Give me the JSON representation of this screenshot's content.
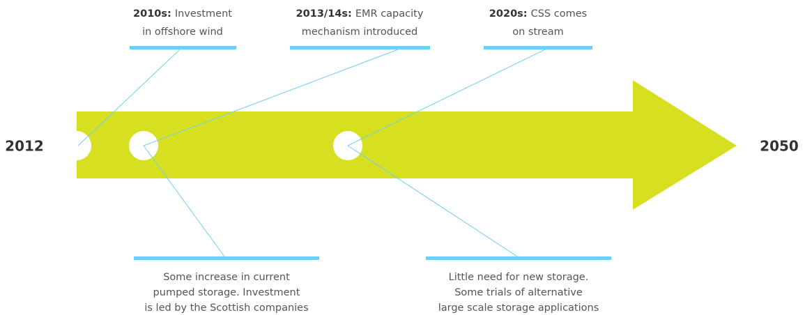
{
  "start": "2012",
  "end": "2050",
  "top_events": [
    {
      "label": "2010s:",
      "text_lines": [
        "Investment",
        "in offshore wind"
      ]
    },
    {
      "label": "2013/14s:",
      "text_lines": [
        "EMR capacity",
        "mechanism introduced"
      ]
    },
    {
      "label": "2020s:",
      "text_lines": [
        "CSS comes",
        "on stream"
      ]
    }
  ],
  "bottom_events": [
    {
      "text_lines": [
        "Some increase in current",
        "pumped storage. Investment",
        "is led by the Scottish companies"
      ]
    },
    {
      "text_lines": [
        "Little need for new storage.",
        "Some trials of alternative",
        "large scale storage applications"
      ]
    }
  ]
}
